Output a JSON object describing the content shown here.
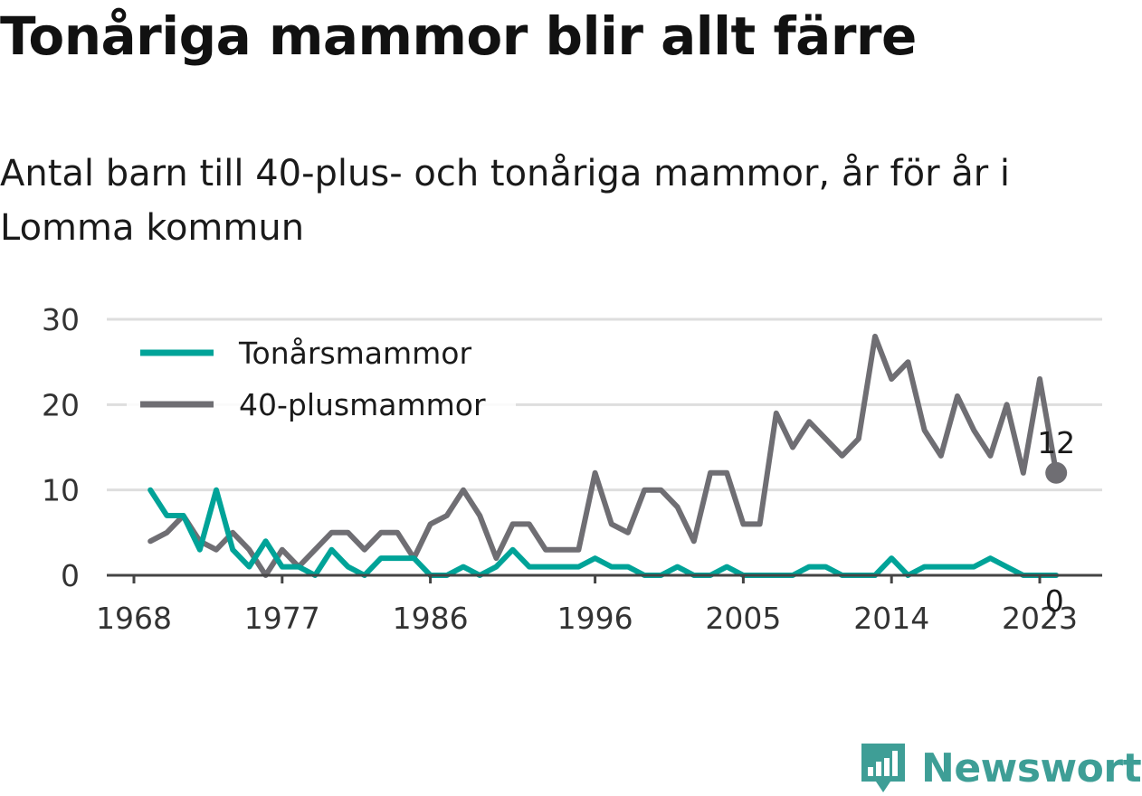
{
  "title": "Tonåriga mammor blir allt färre",
  "subtitle": "Antal barn till 40-plus- och tonåriga mammor, år för år i Lomma kommun",
  "brand": {
    "name": "Newsworthy",
    "icon": "newsworthy-logo-icon",
    "color": "#3e9e96"
  },
  "chart_data": {
    "type": "line",
    "x_ticks": [
      "1968",
      "1977",
      "1986",
      "1996",
      "2005",
      "2014",
      "2023"
    ],
    "y_ticks": [
      "0",
      "10",
      "20",
      "30"
    ],
    "ylim": [
      0,
      30
    ],
    "xlim": [
      1968,
      2024
    ],
    "grid": true,
    "legend": "top-left",
    "x": [
      1969,
      1970,
      1971,
      1972,
      1973,
      1974,
      1975,
      1976,
      1977,
      1978,
      1979,
      1980,
      1981,
      1982,
      1983,
      1984,
      1985,
      1986,
      1987,
      1988,
      1989,
      1990,
      1991,
      1992,
      1993,
      1994,
      1995,
      1996,
      1997,
      1998,
      1999,
      2000,
      2001,
      2002,
      2003,
      2004,
      2005,
      2006,
      2007,
      2008,
      2009,
      2010,
      2011,
      2012,
      2013,
      2014,
      2015,
      2016,
      2017,
      2018,
      2019,
      2020,
      2021,
      2022,
      2023,
      2024
    ],
    "series": [
      {
        "name": "Tonårsmammor",
        "color": "#00a398",
        "values": [
          10,
          7,
          7,
          3,
          10,
          3,
          1,
          4,
          1,
          1,
          0,
          3,
          1,
          0,
          2,
          2,
          2,
          0,
          0,
          1,
          0,
          1,
          3,
          1,
          1,
          1,
          1,
          2,
          1,
          1,
          0,
          0,
          1,
          0,
          0,
          1,
          0,
          0,
          0,
          0,
          1,
          1,
          0,
          0,
          0,
          2,
          0,
          1,
          1,
          1,
          1,
          2,
          1,
          0,
          0,
          0
        ],
        "end_label": "0"
      },
      {
        "name": "40-plusmammor",
        "color": "#6f6e73",
        "values": [
          4,
          5,
          7,
          4,
          3,
          5,
          3,
          0,
          3,
          1,
          3,
          5,
          5,
          3,
          5,
          5,
          2,
          6,
          7,
          10,
          7,
          2,
          6,
          6,
          3,
          3,
          3,
          12,
          6,
          5,
          10,
          10,
          8,
          4,
          12,
          12,
          6,
          6,
          19,
          15,
          18,
          16,
          14,
          16,
          28,
          23,
          25,
          17,
          14,
          21,
          17,
          14,
          20,
          12,
          23,
          12
        ],
        "end_label": "12"
      }
    ]
  }
}
